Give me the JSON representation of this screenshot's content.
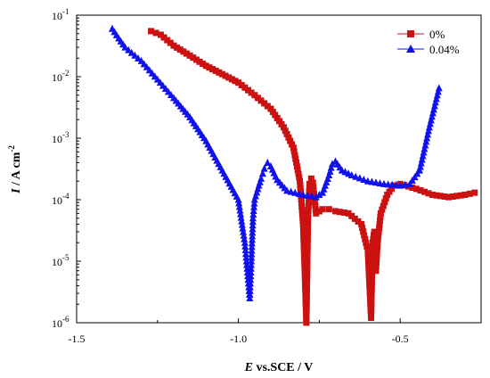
{
  "chart_data": {
    "type": "line",
    "title": "",
    "xlabel_italic": "E",
    "xlabel_rest": " vs.SCE / V",
    "ylabel_italic": "I",
    "ylabel_rest": " / A cm",
    "ylabel_sup": "-2",
    "xlim": [
      -1.5,
      -0.25
    ],
    "ylim": [
      1e-06,
      0.1
    ],
    "yscale": "log",
    "legend_position": "top-right",
    "x_ticks": [
      {
        "value": -1.5,
        "label": "-1.5"
      },
      {
        "value": -1.0,
        "label": "-1.0"
      },
      {
        "value": -0.5,
        "label": "-0.5"
      }
    ],
    "y_ticks": [
      {
        "exp": -6,
        "base": "10",
        "sup": "-6"
      },
      {
        "exp": -5,
        "base": "10",
        "sup": "-5"
      },
      {
        "exp": -4,
        "base": "10",
        "sup": "-4"
      },
      {
        "exp": -3,
        "base": "10",
        "sup": "-3"
      },
      {
        "exp": -2,
        "base": "10",
        "sup": "-2"
      },
      {
        "exp": -1,
        "base": "10",
        "sup": "-1"
      }
    ],
    "series": [
      {
        "name": "0%",
        "color": "#cc1111",
        "marker": "square",
        "x": [
          -1.27,
          -1.24,
          -1.2,
          -1.15,
          -1.1,
          -1.05,
          -1.0,
          -0.95,
          -0.9,
          -0.86,
          -0.83,
          -0.81,
          -0.8,
          -0.795,
          -0.79,
          -0.785,
          -0.78,
          -0.775,
          -0.77,
          -0.76,
          -0.74,
          -0.72,
          -0.7,
          -0.66,
          -0.62,
          -0.6,
          -0.59,
          -0.585,
          -0.58,
          -0.575,
          -0.57,
          -0.56,
          -0.54,
          -0.52,
          -0.5,
          -0.45,
          -0.4,
          -0.35,
          -0.3,
          -0.27
        ],
        "y": [
          0.055,
          0.048,
          0.032,
          0.022,
          0.015,
          0.011,
          0.008,
          0.005,
          0.003,
          0.0015,
          0.0007,
          0.0002,
          4e-05,
          7e-06,
          1e-06,
          5e-05,
          0.00018,
          0.00022,
          0.00019,
          6e-05,
          7e-05,
          7e-05,
          6.5e-05,
          6e-05,
          4e-05,
          1.5e-05,
          1.2e-06,
          2e-05,
          3e-05,
          7e-06,
          2e-05,
          6e-05,
          0.00012,
          0.00017,
          0.00018,
          0.00015,
          0.00012,
          0.00011,
          0.00012,
          0.00013
        ]
      },
      {
        "name": "0.04%",
        "color": "#1111ee",
        "marker": "triangle",
        "x": [
          -1.39,
          -1.37,
          -1.35,
          -1.3,
          -1.25,
          -1.2,
          -1.15,
          -1.1,
          -1.05,
          -1.0,
          -0.98,
          -0.965,
          -0.96,
          -0.955,
          -0.95,
          -0.94,
          -0.93,
          -0.92,
          -0.91,
          -0.9,
          -0.88,
          -0.85,
          -0.8,
          -0.76,
          -0.74,
          -0.72,
          -0.71,
          -0.7,
          -0.68,
          -0.65,
          -0.6,
          -0.55,
          -0.5,
          -0.47,
          -0.44,
          -0.41,
          -0.38
        ],
        "y": [
          0.06,
          0.042,
          0.03,
          0.018,
          0.009,
          0.0045,
          0.0022,
          0.0009,
          0.0003,
          0.0001,
          2e-05,
          2.5e-06,
          1e-05,
          5e-05,
          0.0001,
          0.00015,
          0.00022,
          0.00032,
          0.0004,
          0.00035,
          0.00021,
          0.00014,
          0.00012,
          0.00011,
          0.00013,
          0.00025,
          0.00038,
          0.00042,
          0.0003,
          0.00025,
          0.0002,
          0.00018,
          0.00017,
          0.00018,
          0.0003,
          0.0015,
          0.0065
        ]
      }
    ]
  }
}
